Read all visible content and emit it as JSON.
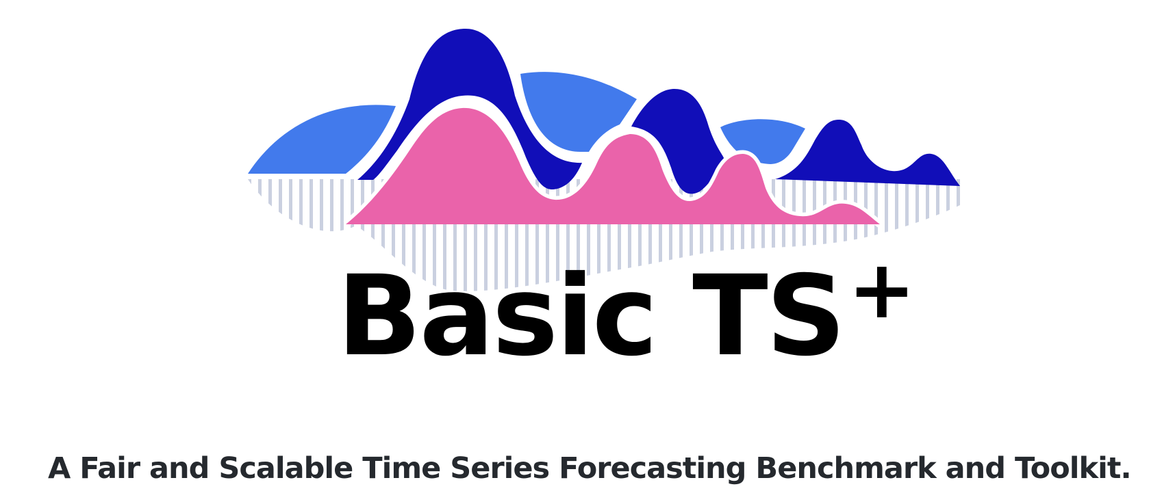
{
  "logo": {
    "title": "Basic TS",
    "superscript": "+",
    "colors": {
      "light_blue": "#427AEC",
      "dark_blue": "#110EB8",
      "pink": "#EA63AA",
      "bars": "#B9C1D6",
      "text": "#000000",
      "tagline": "#25292E"
    }
  },
  "tagline": "A Fair and Scalable Time Series Forecasting Benchmark and Toolkit."
}
